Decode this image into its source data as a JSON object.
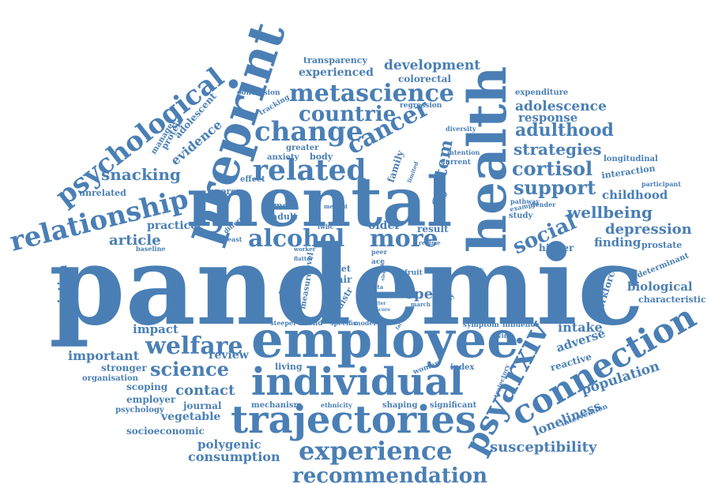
{
  "color": "#4a7fb5",
  "words": [
    "pandemic",
    "mental",
    "employee",
    "health",
    "preprint",
    "individual",
    "trajectories",
    "connection",
    "psyarxiv",
    "metascience",
    "related",
    "relationship",
    "psychological",
    "experience",
    "change",
    "countrie",
    "alcohol",
    "more",
    "cancer",
    "welfare",
    "recommendation",
    "science",
    "social",
    "cortisol",
    "support",
    "adulthood",
    "strategies",
    "system",
    "adolescence",
    "depression",
    "wellbeing",
    "loneliness",
    "population",
    "susceptibility",
    "consumption",
    "contact",
    "important",
    "article",
    "snacking",
    "association",
    "development",
    "experienced",
    "transparency",
    "colorectal",
    "response",
    "expenditure",
    "childhood",
    "finding",
    "prostate",
    "biological",
    "characteristic",
    "intake",
    "adverse",
    "reactive",
    "review",
    "impact",
    "practice",
    "evidence",
    "adolescent",
    "protein",
    "manager",
    "unrelated",
    "poorer",
    "older",
    "result",
    "open",
    "hair",
    "diet",
    "most",
    "adult",
    "scoping",
    "employer",
    "journal",
    "vegetable",
    "socioeconomic",
    "polygenic",
    "mechanism",
    "shaping",
    "significant",
    "ethnicity",
    "stronger",
    "organisation",
    "psychology",
    "living",
    "increase",
    "workforce",
    "higher",
    "determinant",
    "depressive",
    "quality",
    "symptom",
    "influence",
    "woman",
    "index",
    "trajectory",
    "living",
    "friend",
    "specific",
    "model",
    "steeper",
    "family",
    "body",
    "anxiety",
    "greater",
    "effect",
    "tracking",
    "conclusion",
    "regression",
    "diversity",
    "intention",
    "current",
    "limited",
    "longitudinal",
    "interaction",
    "participant",
    "pathway",
    "example",
    "gender",
    "study",
    "baseline",
    "breast",
    "different",
    "lwbc",
    "method",
    "worker",
    "flatter",
    "regime",
    "genetic",
    "measure",
    "level",
    "fruit",
    "mass",
    "peer",
    "ace",
    "data",
    "time",
    "march",
    "better",
    "score",
    "distr",
    "period",
    "sleep",
    "risk",
    "factor",
    "intervention"
  ]
}
